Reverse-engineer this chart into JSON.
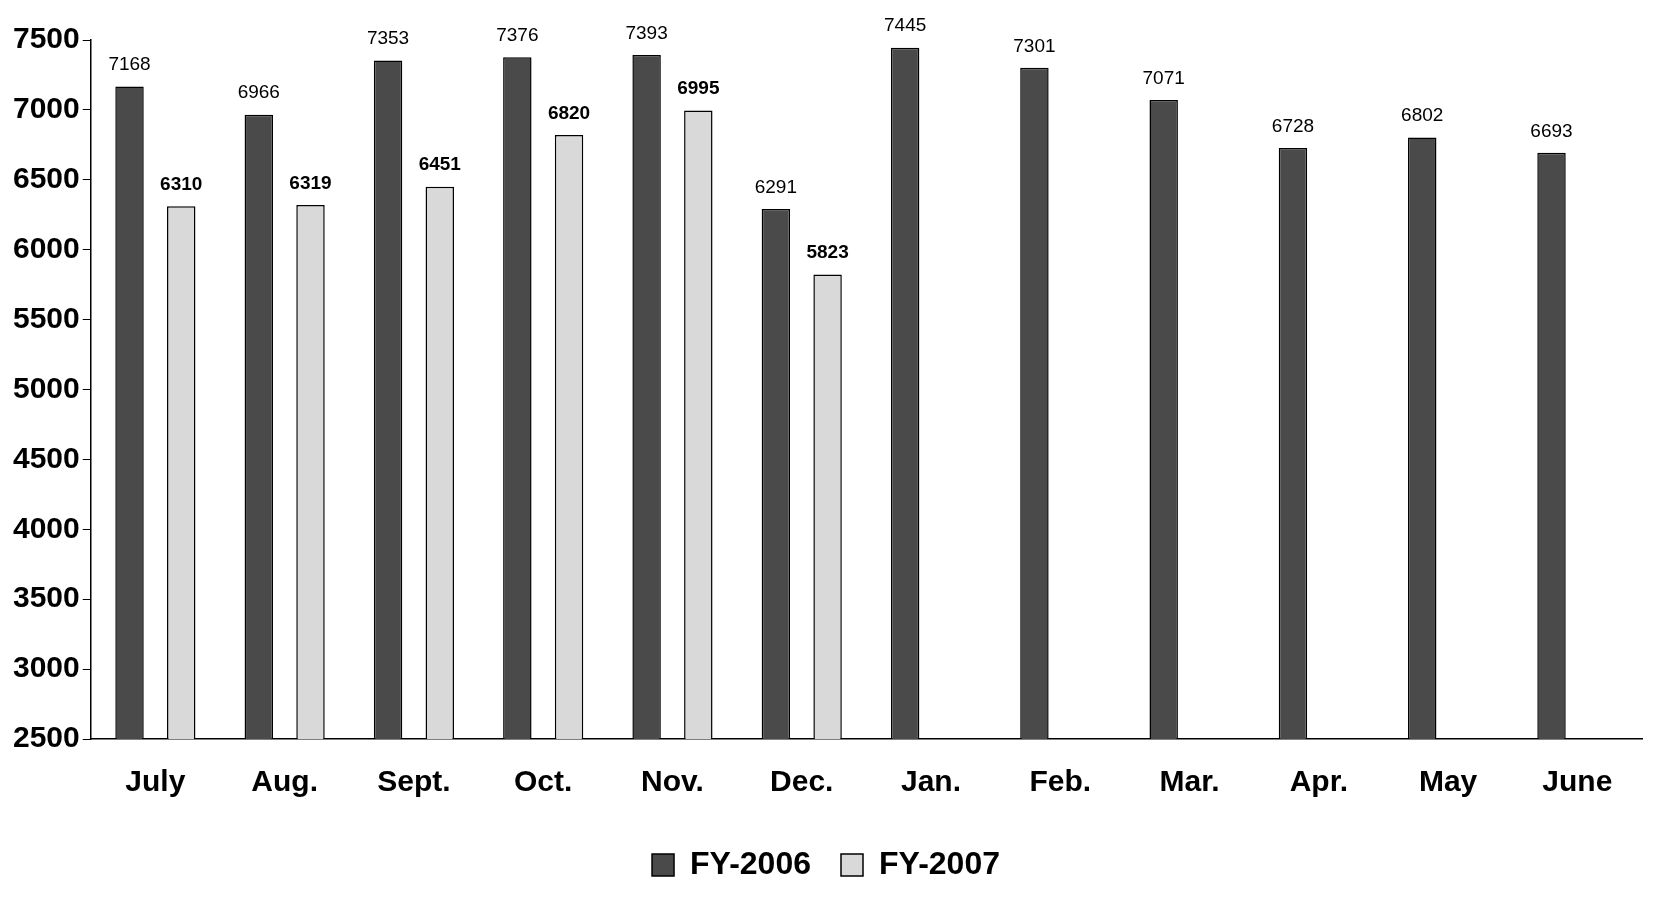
{
  "chart_data": {
    "type": "bar",
    "categories": [
      "July",
      "Aug.",
      "Sept.",
      "Oct.",
      "Nov.",
      "Dec.",
      "Jan.",
      "Feb.",
      "Mar.",
      "Apr.",
      "May",
      "June"
    ],
    "series": [
      {
        "name": "FY-2006",
        "color": "#4a4a4a",
        "values": [
          7168,
          6966,
          7353,
          7376,
          7393,
          6291,
          7445,
          7301,
          7071,
          6728,
          6802,
          6693
        ]
      },
      {
        "name": "FY-2007",
        "color": "#d9d9d9",
        "values": [
          6310,
          6319,
          6451,
          6820,
          6995,
          5823,
          null,
          null,
          null,
          null,
          null,
          null
        ]
      }
    ],
    "ylim": [
      2500,
      7500
    ],
    "yticks": [
      2500,
      3000,
      3500,
      4000,
      4500,
      5000,
      5500,
      6000,
      6500,
      7000,
      7500
    ],
    "grid": false,
    "legend": "bottom",
    "data_labels": true
  }
}
